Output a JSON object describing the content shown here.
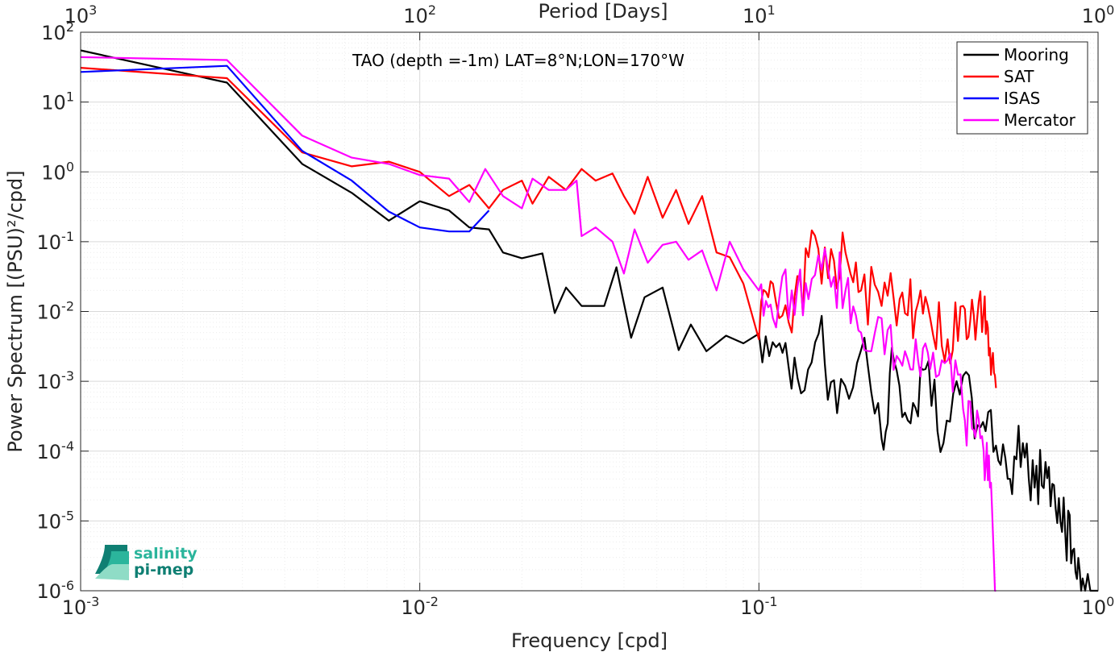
{
  "chart_data": {
    "type": "line",
    "annotation": "TAO (depth =-1m) LAT=8°N;LON=170°W",
    "xlabel": "Frequency [cpd]",
    "ylabel": "Power Spectrum [(PSU)²/cpd]",
    "top_xlabel": "Period [Days]",
    "xscale": "log",
    "yscale": "log",
    "xlim": [
      0.001,
      1
    ],
    "ylim": [
      1e-06,
      100
    ],
    "grid": true,
    "minor_grid": true,
    "legend_position": "top-right",
    "x_ticks": [
      {
        "value": 0.001,
        "base": "10",
        "exp": "-3"
      },
      {
        "value": 0.01,
        "base": "10",
        "exp": "-2"
      },
      {
        "value": 0.1,
        "base": "10",
        "exp": "-1"
      },
      {
        "value": 1,
        "base": "10",
        "exp": "0"
      }
    ],
    "top_x_ticks": [
      {
        "freq": 0.001,
        "base": "10",
        "exp": "3"
      },
      {
        "freq": 0.01,
        "base": "10",
        "exp": "2"
      },
      {
        "freq": 0.1,
        "base": "10",
        "exp": "1"
      },
      {
        "freq": 1,
        "base": "10",
        "exp": "0"
      }
    ],
    "y_ticks": [
      {
        "value": 100,
        "base": "10",
        "exp": "2"
      },
      {
        "value": 10,
        "base": "10",
        "exp": "1"
      },
      {
        "value": 1,
        "base": "10",
        "exp": "0"
      },
      {
        "value": 0.1,
        "base": "10",
        "exp": "-1"
      },
      {
        "value": 0.01,
        "base": "10",
        "exp": "-2"
      },
      {
        "value": 0.001,
        "base": "10",
        "exp": "-3"
      },
      {
        "value": 0.0001,
        "base": "10",
        "exp": "-4"
      },
      {
        "value": 1e-05,
        "base": "10",
        "exp": "-5"
      },
      {
        "value": 1e-06,
        "base": "10",
        "exp": "-6"
      }
    ],
    "series": [
      {
        "name": "Mooring",
        "color": "#000000",
        "x": [
          0.001,
          0.0027,
          0.0045,
          0.0063,
          0.0081,
          0.01,
          0.0122,
          0.014,
          0.016,
          0.0176,
          0.02,
          0.023,
          0.025,
          0.027,
          0.03,
          0.035,
          0.038,
          0.042,
          0.046,
          0.052,
          0.058,
          0.063,
          0.07,
          0.08,
          0.09,
          0.1,
          0.115,
          0.13,
          0.15,
          0.17,
          0.2,
          0.23,
          0.25,
          0.28,
          0.31,
          0.35,
          0.4,
          0.45,
          0.5,
          0.55,
          0.6,
          0.65,
          0.7,
          0.75,
          0.8,
          0.85,
          0.9,
          1.0
        ],
        "values": [
          55,
          19,
          1.3,
          0.5,
          0.2,
          0.38,
          0.28,
          0.16,
          0.15,
          0.07,
          0.058,
          0.068,
          0.0095,
          0.022,
          0.012,
          0.012,
          0.043,
          0.0042,
          0.016,
          0.022,
          0.0028,
          0.0065,
          0.0027,
          0.0045,
          0.0035,
          0.0048,
          0.0035,
          0.0011,
          0.0048,
          0.00035,
          0.0028,
          0.00015,
          0.002,
          0.00025,
          0.0015,
          0.00013,
          0.0012,
          0.00022,
          0.00012,
          4e-05,
          0.00013,
          3e-05,
          7e-05,
          1.5e-05,
          7e-06,
          4e-06,
          1.5e-06,
          1e-06
        ]
      },
      {
        "name": "SAT",
        "color": "#FF0000",
        "x": [
          0.001,
          0.0027,
          0.0045,
          0.0063,
          0.0081,
          0.01,
          0.0122,
          0.014,
          0.016,
          0.0176,
          0.02,
          0.0215,
          0.024,
          0.027,
          0.03,
          0.033,
          0.037,
          0.04,
          0.043,
          0.047,
          0.052,
          0.057,
          0.062,
          0.068,
          0.075,
          0.082,
          0.09,
          0.1,
          0.11,
          0.125,
          0.14,
          0.16,
          0.18,
          0.2,
          0.23,
          0.26,
          0.29,
          0.32,
          0.36,
          0.4,
          0.43,
          0.46,
          0.48,
          0.5
        ],
        "values": [
          31,
          22,
          1.9,
          1.2,
          1.4,
          1.0,
          0.45,
          0.65,
          0.3,
          0.55,
          0.75,
          0.35,
          0.85,
          0.55,
          1.1,
          0.75,
          0.95,
          0.45,
          0.25,
          0.85,
          0.22,
          0.55,
          0.18,
          0.45,
          0.07,
          0.06,
          0.025,
          0.004,
          0.025,
          0.005,
          0.06,
          0.03,
          0.07,
          0.02,
          0.012,
          0.015,
          0.01,
          0.008,
          0.004,
          0.012,
          0.009,
          0.01,
          0.003,
          0.0008
        ]
      },
      {
        "name": "ISAS",
        "color": "#0000FF",
        "x": [
          0.001,
          0.0027,
          0.0045,
          0.0063,
          0.0081,
          0.01,
          0.0122,
          0.014,
          0.016
        ],
        "values": [
          27,
          33,
          2.0,
          0.75,
          0.27,
          0.16,
          0.14,
          0.14,
          0.28
        ]
      },
      {
        "name": "Mercator",
        "color": "#FF00FF",
        "x": [
          0.001,
          0.0027,
          0.0045,
          0.0063,
          0.0081,
          0.01,
          0.0122,
          0.014,
          0.0156,
          0.0176,
          0.02,
          0.0215,
          0.024,
          0.027,
          0.029,
          0.03,
          0.033,
          0.037,
          0.04,
          0.043,
          0.047,
          0.052,
          0.057,
          0.062,
          0.068,
          0.075,
          0.082,
          0.09,
          0.1,
          0.11,
          0.125,
          0.14,
          0.16,
          0.18,
          0.2,
          0.23,
          0.26,
          0.29,
          0.32,
          0.36,
          0.4,
          0.43,
          0.46,
          0.48,
          0.5
        ],
        "values": [
          44,
          40,
          3.3,
          1.6,
          1.3,
          0.9,
          0.8,
          0.37,
          1.1,
          0.45,
          0.3,
          0.8,
          0.55,
          0.55,
          0.75,
          0.12,
          0.16,
          0.1,
          0.035,
          0.15,
          0.05,
          0.09,
          0.1,
          0.055,
          0.075,
          0.02,
          0.1,
          0.04,
          0.02,
          0.008,
          0.02,
          0.015,
          0.04,
          0.02,
          0.005,
          0.008,
          0.002,
          0.004,
          0.0015,
          0.002,
          0.0004,
          0.0002,
          0.0001,
          3e-05,
          1e-06
        ]
      }
    ]
  },
  "logo": {
    "line1": "salinity",
    "line2": "pi-mep",
    "colors": [
      "#0f7f73",
      "#2bb59c",
      "#8fdcc6"
    ]
  }
}
